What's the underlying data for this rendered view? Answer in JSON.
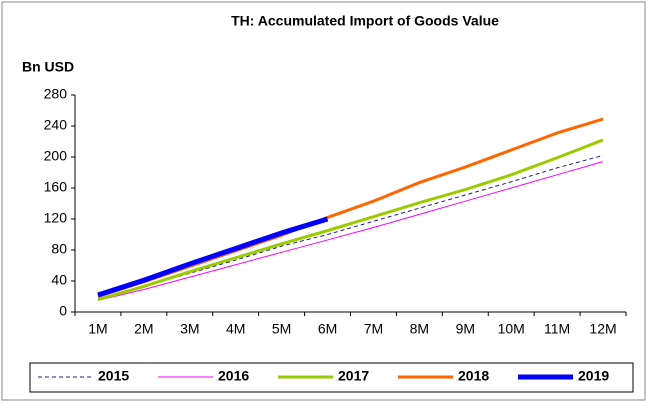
{
  "chart_data": {
    "type": "line",
    "title": "TH: Accumulated Import of Goods Value",
    "y_label": "Bn USD",
    "categories": [
      "1M",
      "2M",
      "3M",
      "4M",
      "5M",
      "6M",
      "7M",
      "8M",
      "9M",
      "10M",
      "11M",
      "12M"
    ],
    "ylim": [
      0,
      280
    ],
    "yticks": [
      0,
      40,
      80,
      120,
      160,
      200,
      240,
      280
    ],
    "grid": false,
    "legend": "bottom",
    "series": [
      {
        "name": "2015",
        "color": "#1f1f7a",
        "line_width": 1,
        "dash": true,
        "values": [
          17,
          33,
          50,
          67,
          85,
          100,
          117,
          134,
          151,
          168,
          186,
          202
        ]
      },
      {
        "name": "2016",
        "color": "#ff00ff",
        "line_width": 1,
        "dash": false,
        "values": [
          15,
          29,
          45,
          61,
          77,
          93,
          109,
          126,
          143,
          160,
          177,
          194
        ]
      },
      {
        "name": "2017",
        "color": "#99cc00",
        "line_width": 3,
        "dash": false,
        "values": [
          16,
          33,
          52,
          70,
          88,
          105,
          123,
          141,
          158,
          177,
          199,
          222
        ]
      },
      {
        "name": "2018",
        "color": "#ff6600",
        "line_width": 3,
        "dash": false,
        "values": [
          20,
          39,
          59,
          79,
          99,
          122,
          143,
          167,
          187,
          209,
          231,
          249
        ]
      },
      {
        "name": "2019",
        "color": "#0000ff",
        "line_width": 5,
        "dash": false,
        "values": [
          22,
          41,
          62,
          82,
          102,
          120,
          null,
          null,
          null,
          null,
          null,
          null
        ]
      }
    ]
  }
}
